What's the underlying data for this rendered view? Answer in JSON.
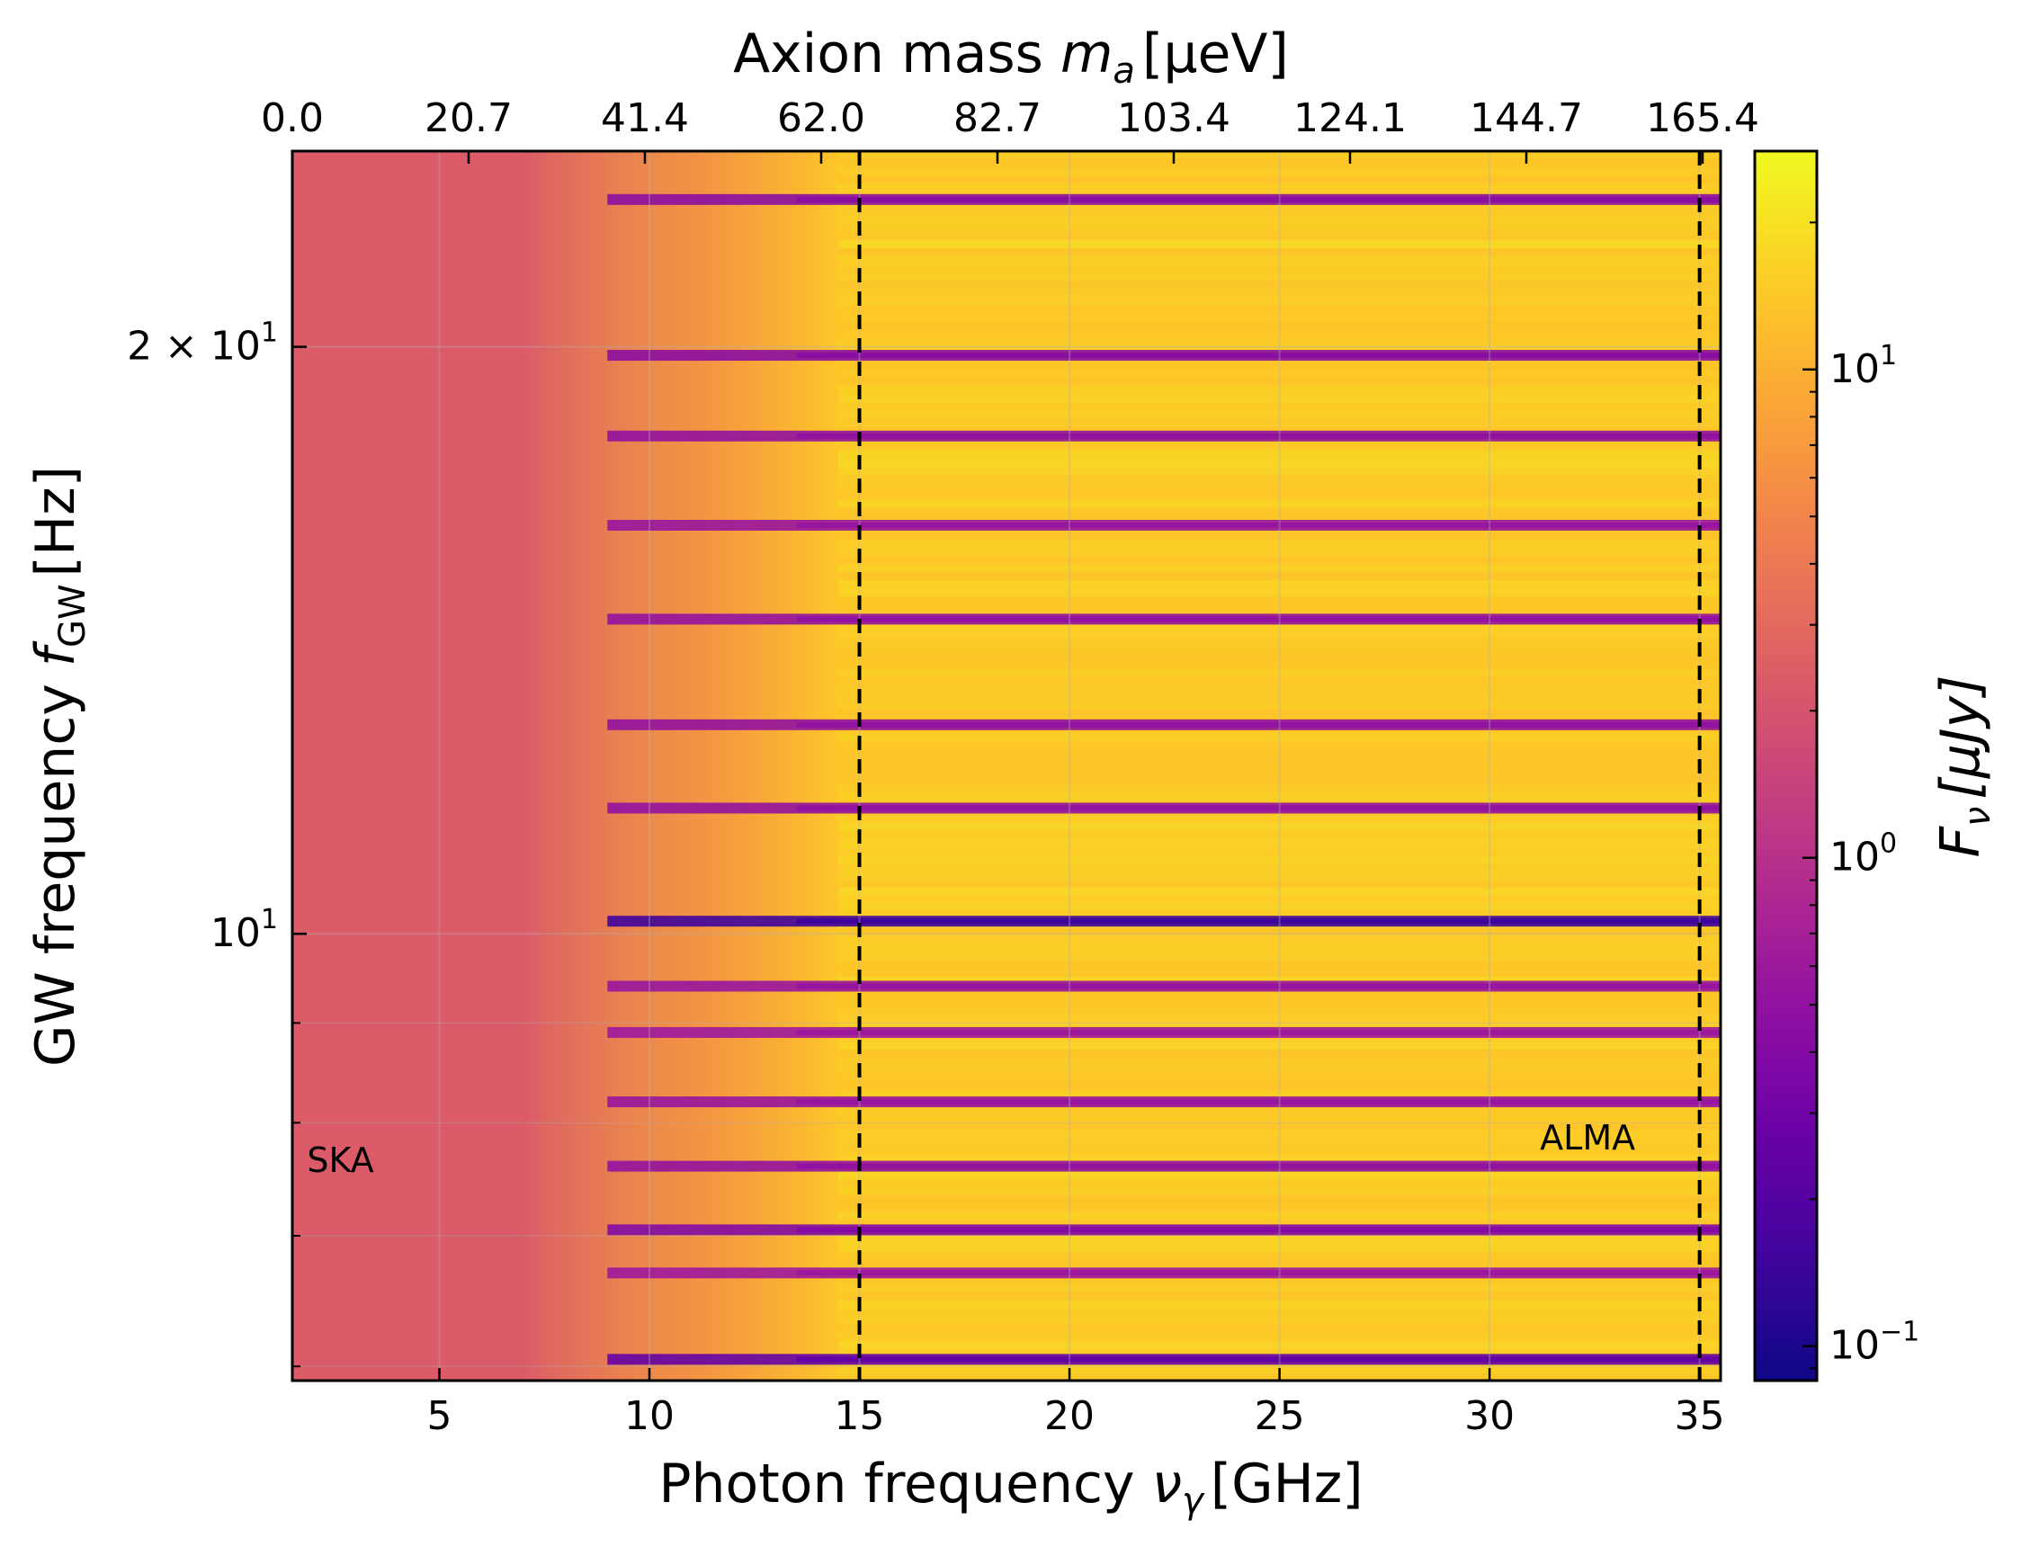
{
  "chart_data": {
    "type": "heatmap",
    "xlabel": {
      "text": "Photon frequency ",
      "symbol": "ν",
      "sub": "γ",
      "unit": "[GHz]"
    },
    "ylabel": {
      "text": "GW frequency ",
      "symbol": "f",
      "sub": "GW",
      "unit": "[Hz]"
    },
    "top_xlabel": {
      "text": "Axion mass ",
      "symbol": "m",
      "sub": "a",
      "unit": "[μeV]"
    },
    "colorbar_label": {
      "symbol": "F",
      "sub": "ν",
      "unit": "[μJy]"
    },
    "x_scale": "linear",
    "xlim": [
      1.5,
      35.5
    ],
    "x_ticks": [
      5,
      10,
      15,
      20,
      25,
      30,
      35
    ],
    "x_tick_labels": [
      "5",
      "10",
      "15",
      "20",
      "25",
      "30",
      "35"
    ],
    "top_ticks": [
      0.0,
      20.7,
      41.4,
      62.0,
      82.7,
      103.4,
      124.1,
      144.7,
      165.4
    ],
    "top_tick_labels": [
      "0.0",
      "20.7",
      "41.4",
      "62.0",
      "82.7",
      "103.4",
      "124.1",
      "144.7",
      "165.4"
    ],
    "y_scale": "log",
    "ylim": [
      5.9,
      25.2
    ],
    "y_major_ticks": [
      {
        "value": 10,
        "base": "10",
        "exp": "1",
        "prefix": ""
      },
      {
        "value": 20,
        "base": "10",
        "exp": "1",
        "prefix": "2 × "
      }
    ],
    "y_minor_ticks": [
      6,
      7,
      8,
      9
    ],
    "colorbar_scale": "log",
    "colorbar_range": [
      0.085,
      28
    ],
    "colorbar_ticks": [
      {
        "value": 0.1,
        "base": "10",
        "exp": "−1"
      },
      {
        "value": 1,
        "base": "10",
        "exp": "0"
      },
      {
        "value": 10,
        "base": "10",
        "exp": "1"
      }
    ],
    "colormap": "plasma",
    "colormap_stops": [
      "#0d0887",
      "#46039f",
      "#7201a8",
      "#9c179e",
      "#bd3786",
      "#d8576b",
      "#ed7953",
      "#fb9f3a",
      "#fdca26",
      "#f0f921"
    ],
    "background_level": 2.3,
    "plateau_level": 14,
    "transition_start_x": 7,
    "transition_end_x": 14.5,
    "dark_bands": [
      {
        "y": 6.05,
        "level": 0.25
      },
      {
        "y": 6.7,
        "level": 0.6
      },
      {
        "y": 7.05,
        "level": 0.4
      },
      {
        "y": 7.6,
        "level": 0.5
      },
      {
        "y": 8.2,
        "level": 0.55
      },
      {
        "y": 8.9,
        "level": 0.6
      },
      {
        "y": 9.4,
        "level": 0.55
      },
      {
        "y": 10.15,
        "level": 0.15
      },
      {
        "y": 11.6,
        "level": 0.5
      },
      {
        "y": 12.8,
        "level": 0.5
      },
      {
        "y": 14.5,
        "level": 0.5
      },
      {
        "y": 16.2,
        "level": 0.55
      },
      {
        "y": 18.0,
        "level": 0.5
      },
      {
        "y": 19.8,
        "level": 0.45
      },
      {
        "y": 23.8,
        "level": 0.45
      }
    ],
    "vlines": [
      {
        "x": 15,
        "style": "dashed"
      },
      {
        "x": 35,
        "style": "dashed"
      }
    ],
    "annotations": [
      {
        "text": "SKA",
        "x": 1.85,
        "y": 7.55
      },
      {
        "text": "ALMA",
        "x": 31.2,
        "y": 7.75
      }
    ],
    "grid": true,
    "colorbar_position": "right"
  }
}
